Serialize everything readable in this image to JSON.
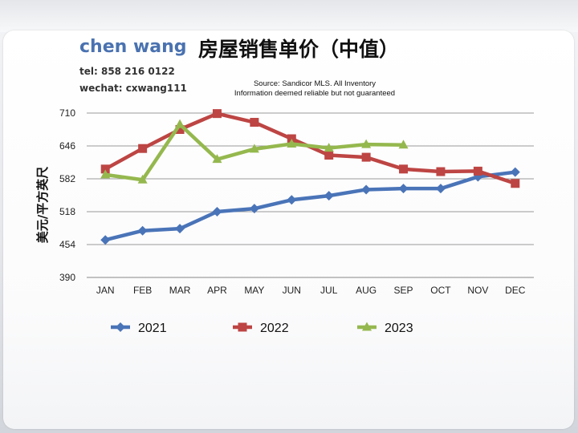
{
  "agent": {
    "name": "chen wang",
    "tel": "tel: 858 216 0122",
    "wechat": "wechat: cxwang111"
  },
  "source_lines": [
    "Source: Sandicor MLS. All Inventory",
    "Information deemed reliable but not guaranteed"
  ],
  "chart_data": {
    "type": "line",
    "title": "房屋销售单价（中值）",
    "xlabel": "",
    "ylabel": "美元/平方英尺",
    "categories": [
      "JAN",
      "FEB",
      "MAR",
      "APR",
      "MAY",
      "JUN",
      "JUL",
      "AUG",
      "SEP",
      "OCT",
      "NOV",
      "DEC"
    ],
    "ylim": [
      390,
      710
    ],
    "yticks": [
      390,
      454,
      518,
      582,
      646,
      710
    ],
    "grid": true,
    "legend_position": "bottom",
    "series": [
      {
        "name": "2021",
        "color": "#4a74b8",
        "marker": "diamond",
        "values": [
          463,
          481,
          485,
          518,
          524,
          541,
          549,
          561,
          563,
          563,
          586,
          595
        ]
      },
      {
        "name": "2022",
        "color": "#bd4543",
        "marker": "square",
        "values": [
          601,
          641,
          678,
          709,
          692,
          660,
          628,
          624,
          601,
          596,
          597,
          573
        ]
      },
      {
        "name": "2023",
        "color": "#95b84e",
        "marker": "triangle",
        "values": [
          590,
          580,
          688,
          620,
          640,
          650,
          642,
          649,
          648,
          null,
          null,
          null
        ]
      }
    ]
  }
}
